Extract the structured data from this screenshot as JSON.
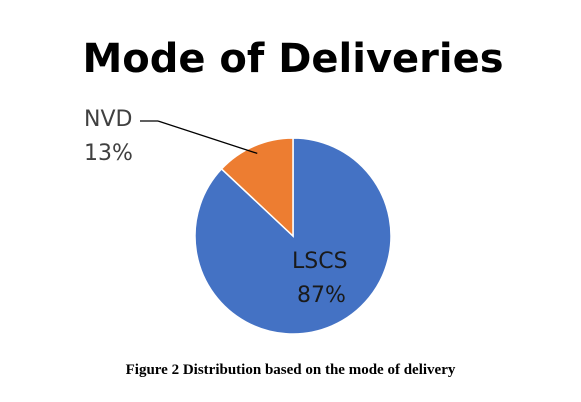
{
  "chart_data": {
    "type": "pie",
    "title": "Mode of Deliveries",
    "slices": [
      {
        "label": "LSCS",
        "value": 87,
        "value_text": "87%",
        "color": "#4472C4"
      },
      {
        "label": "NVD",
        "value": 13,
        "value_text": "13%",
        "color": "#ED7D31"
      }
    ],
    "start_angle_deg": 0,
    "direction": "clockwise",
    "legend": "none"
  },
  "caption": "Figure 2 Distribution based on the mode of delivery"
}
